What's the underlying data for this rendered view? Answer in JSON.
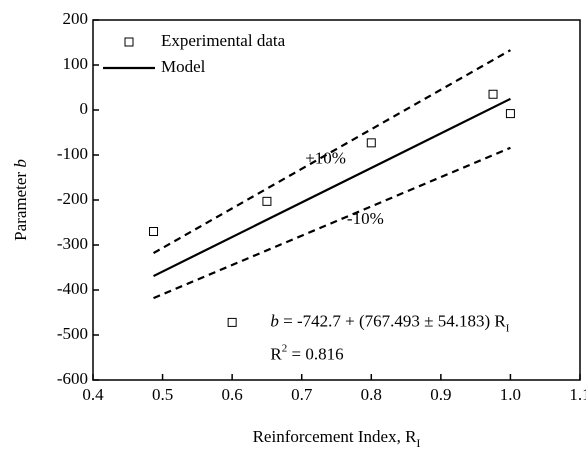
{
  "chart_data": {
    "type": "scatter",
    "x_label_parts": [
      "Reinforcement Index, R",
      "I"
    ],
    "y_label_parts": [
      "Parameter ",
      "b"
    ],
    "xlim": [
      0.4,
      1.1
    ],
    "ylim": [
      -600,
      200
    ],
    "xticks": [
      0.4,
      0.5,
      0.6,
      0.7,
      0.8,
      0.9,
      {
        "value": 1.0,
        "label": "1.0"
      },
      1.1
    ],
    "yticks": [
      -600,
      -500,
      -400,
      -300,
      -200,
      -100,
      0,
      100,
      200
    ],
    "legend": "upper left",
    "series": [
      {
        "name": "Experimental data",
        "kind": "points",
        "color": "#000000",
        "x": [
          0.487,
          0.65,
          0.8,
          0.975,
          1.0,
          0.6
        ],
        "values": [
          -270,
          -203,
          -73,
          35,
          -8,
          -472
        ]
      },
      {
        "name": "Model",
        "kind": "line",
        "color": "#000000",
        "x": [
          0.487,
          1.0
        ],
        "values": [
          -369,
          24.8
        ]
      },
      {
        "kind": "dashed",
        "color": "#000000",
        "x": [
          0.487,
          1.0
        ],
        "values": [
          -318,
          133
        ]
      },
      {
        "kind": "dashed",
        "color": "#000000",
        "x": [
          0.487,
          1.0
        ],
        "values": [
          -418,
          -84
        ]
      }
    ],
    "annotations": [
      {
        "text": "+10%",
        "x": 0.705,
        "y": -110
      },
      {
        "text": "-10%",
        "x": 0.765,
        "y": -245
      }
    ],
    "equation_parts": [
      "b",
      " = -742.7 + (767.493 ± 54.183) R",
      "I"
    ],
    "equation_pos": [
      0.655,
      -472
    ],
    "r2_parts": [
      "R",
      "2",
      " = 0.816"
    ],
    "r2_pos": [
      0.655,
      -545
    ]
  }
}
